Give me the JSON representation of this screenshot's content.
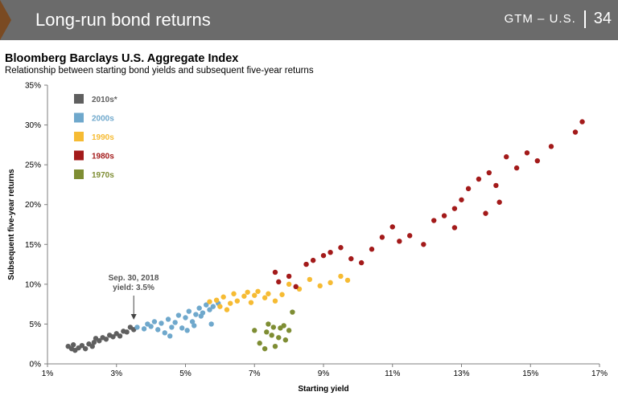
{
  "banner": {
    "title": "Long-run bond returns",
    "label": "GTM – U.S.",
    "page_number": "34"
  },
  "colors": {
    "banner": "#6b6b6b",
    "accent": "#7a4a22",
    "s2010": "#5f5f5f",
    "s2000": "#6fa8cc",
    "s1990": "#f6bb33",
    "s1980": "#a31a1a",
    "s1970": "#7e8d33"
  },
  "chart_data": {
    "type": "scatter",
    "title": "Bloomberg Barclays U.S. Aggregate Index",
    "subtitle": "Relationship between starting bond yields and subsequent five-year returns",
    "xlabel": "Starting yield",
    "ylabel": "Subsequent five-year returns",
    "xlim": [
      1,
      17
    ],
    "ylim": [
      0,
      35
    ],
    "x_ticks": [
      "1%",
      "3%",
      "5%",
      "7%",
      "9%",
      "11%",
      "13%",
      "15%",
      "17%"
    ],
    "y_ticks": [
      "0%",
      "5%",
      "10%",
      "15%",
      "20%",
      "25%",
      "30%",
      "35%"
    ],
    "grid": false,
    "legend_position": "top-left",
    "annotation": {
      "lines": [
        "Sep. 30, 2018",
        "yield: 3.5%"
      ],
      "x": 3.5,
      "y": 4.3
    },
    "series": [
      {
        "name": "2010s*",
        "color": "#5f5f5f",
        "points": [
          [
            1.6,
            2.2
          ],
          [
            1.7,
            1.9
          ],
          [
            1.75,
            2.4
          ],
          [
            1.8,
            1.7
          ],
          [
            1.9,
            2.0
          ],
          [
            2.0,
            2.3
          ],
          [
            2.1,
            1.9
          ],
          [
            2.2,
            2.5
          ],
          [
            2.3,
            2.2
          ],
          [
            2.35,
            2.7
          ],
          [
            2.4,
            3.2
          ],
          [
            2.5,
            2.9
          ],
          [
            2.6,
            3.3
          ],
          [
            2.7,
            3.1
          ],
          [
            2.8,
            3.6
          ],
          [
            2.9,
            3.4
          ],
          [
            3.0,
            3.8
          ],
          [
            3.1,
            3.5
          ],
          [
            3.2,
            4.1
          ],
          [
            3.3,
            4.0
          ],
          [
            3.4,
            4.6
          ],
          [
            3.5,
            4.3
          ]
        ]
      },
      {
        "name": "2000s",
        "color": "#6fa8cc",
        "points": [
          [
            3.6,
            4.6
          ],
          [
            3.8,
            4.4
          ],
          [
            3.9,
            5.0
          ],
          [
            4.0,
            4.7
          ],
          [
            4.1,
            5.3
          ],
          [
            4.2,
            4.3
          ],
          [
            4.3,
            5.1
          ],
          [
            4.4,
            3.9
          ],
          [
            4.5,
            5.6
          ],
          [
            4.6,
            4.6
          ],
          [
            4.7,
            5.2
          ],
          [
            4.8,
            6.1
          ],
          [
            4.9,
            4.5
          ],
          [
            5.0,
            5.8
          ],
          [
            5.1,
            6.6
          ],
          [
            5.2,
            5.3
          ],
          [
            5.3,
            6.2
          ],
          [
            5.4,
            7.0
          ],
          [
            5.5,
            6.4
          ],
          [
            5.6,
            7.4
          ],
          [
            5.7,
            6.8
          ],
          [
            5.8,
            7.2
          ],
          [
            4.55,
            3.5
          ],
          [
            5.25,
            4.8
          ],
          [
            5.45,
            6.0
          ],
          [
            5.75,
            5.0
          ],
          [
            5.95,
            7.6
          ],
          [
            5.05,
            4.2
          ]
        ]
      },
      {
        "name": "1990s",
        "color": "#f6bb33",
        "points": [
          [
            5.7,
            7.8
          ],
          [
            5.9,
            8.0
          ],
          [
            6.0,
            7.2
          ],
          [
            6.1,
            8.4
          ],
          [
            6.3,
            7.6
          ],
          [
            6.4,
            8.8
          ],
          [
            6.5,
            7.9
          ],
          [
            6.7,
            8.5
          ],
          [
            6.8,
            9.0
          ],
          [
            6.9,
            7.7
          ],
          [
            7.0,
            8.6
          ],
          [
            7.1,
            9.1
          ],
          [
            7.3,
            8.3
          ],
          [
            7.4,
            8.8
          ],
          [
            7.6,
            7.9
          ],
          [
            7.8,
            8.7
          ],
          [
            8.0,
            10.0
          ],
          [
            8.3,
            9.4
          ],
          [
            8.6,
            10.6
          ],
          [
            8.9,
            9.8
          ],
          [
            9.2,
            10.2
          ],
          [
            9.5,
            11.0
          ],
          [
            9.7,
            10.5
          ],
          [
            6.2,
            6.8
          ]
        ]
      },
      {
        "name": "1980s",
        "color": "#a31a1a",
        "points": [
          [
            7.6,
            11.5
          ],
          [
            7.7,
            10.3
          ],
          [
            8.0,
            11.0
          ],
          [
            8.2,
            9.7
          ],
          [
            8.5,
            12.5
          ],
          [
            8.7,
            13.0
          ],
          [
            9.0,
            13.6
          ],
          [
            9.2,
            14.0
          ],
          [
            9.5,
            14.6
          ],
          [
            9.8,
            13.2
          ],
          [
            10.1,
            12.7
          ],
          [
            10.4,
            14.4
          ],
          [
            10.7,
            15.9
          ],
          [
            11.0,
            17.2
          ],
          [
            11.2,
            15.4
          ],
          [
            11.5,
            16.1
          ],
          [
            11.9,
            15.0
          ],
          [
            12.2,
            18.0
          ],
          [
            12.5,
            18.6
          ],
          [
            12.8,
            19.5
          ],
          [
            13.0,
            20.6
          ],
          [
            13.2,
            22.0
          ],
          [
            13.5,
            23.2
          ],
          [
            13.8,
            24.0
          ],
          [
            14.0,
            22.4
          ],
          [
            14.3,
            26.0
          ],
          [
            14.6,
            24.6
          ],
          [
            14.9,
            26.5
          ],
          [
            15.2,
            25.5
          ],
          [
            15.6,
            27.3
          ],
          [
            16.3,
            29.1
          ],
          [
            16.5,
            30.4
          ],
          [
            12.8,
            17.1
          ],
          [
            14.1,
            20.3
          ],
          [
            13.7,
            18.9
          ]
        ]
      },
      {
        "name": "1970s",
        "color": "#7e8d33",
        "points": [
          [
            7.0,
            4.2
          ],
          [
            7.15,
            2.6
          ],
          [
            7.35,
            4.0
          ],
          [
            7.4,
            5.0
          ],
          [
            7.5,
            3.6
          ],
          [
            7.55,
            4.6
          ],
          [
            7.6,
            2.2
          ],
          [
            7.7,
            3.3
          ],
          [
            7.75,
            4.5
          ],
          [
            7.85,
            4.8
          ],
          [
            7.9,
            3.0
          ],
          [
            8.0,
            4.2
          ],
          [
            8.1,
            6.5
          ],
          [
            7.3,
            1.9
          ]
        ]
      }
    ]
  }
}
